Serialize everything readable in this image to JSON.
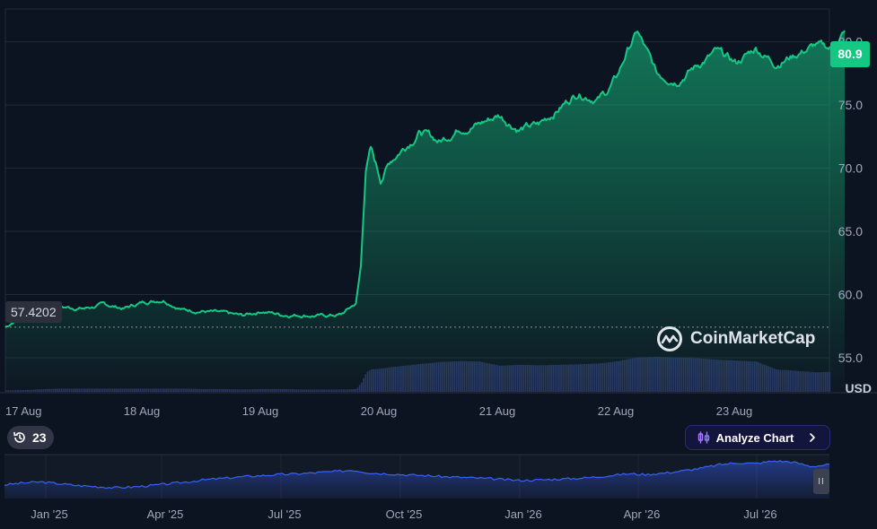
{
  "chart_data": {
    "type": "area",
    "y_axis": {
      "ticks": [
        "80.0",
        "75.0",
        "70.0",
        "65.0",
        "60.0",
        "55.0"
      ],
      "ylim": [
        52.3,
        82.6
      ],
      "unit": "USD",
      "side": "right"
    },
    "x_axis": {
      "ticks": [
        "17 Aug",
        "18 Aug",
        "19 Aug",
        "20 Aug",
        "21 Aug",
        "22 Aug",
        "23 Aug"
      ]
    },
    "current_value": "80.9",
    "start_value": "57.4202",
    "series": [
      {
        "x": [
          "17 Aug 00:00",
          "17 Aug 04:00",
          "17 Aug 08:00",
          "17 Aug 12:00",
          "17 Aug 16:00",
          "17 Aug 20:00",
          "18 Aug 00:00",
          "18 Aug 04:00",
          "18 Aug 08:00",
          "18 Aug 12:00",
          "18 Aug 16:00",
          "18 Aug 20:00",
          "19 Aug 00:00",
          "19 Aug 04:00",
          "19 Aug 08:00",
          "19 Aug 12:00",
          "19 Aug 16:00",
          "19 Aug 20:00",
          "19 Aug 23:00",
          "20 Aug 00:00",
          "20 Aug 01:00",
          "20 Aug 02:00",
          "20 Aug 04:00",
          "20 Aug 06:00",
          "20 Aug 08:00",
          "20 Aug 12:00",
          "20 Aug 16:00",
          "20 Aug 20:00",
          "21 Aug 00:00",
          "21 Aug 04:00",
          "21 Aug 08:00",
          "21 Aug 12:00",
          "21 Aug 16:00",
          "21 Aug 20:00",
          "22 Aug 00:00",
          "22 Aug 02:00",
          "22 Aug 04:00",
          "22 Aug 06:00",
          "22 Aug 08:00",
          "22 Aug 12:00",
          "22 Aug 16:00",
          "22 Aug 20:00",
          "23 Aug 00:00",
          "23 Aug 04:00",
          "23 Aug 08:00",
          "23 Aug 12:00",
          "23 Aug 16:00",
          "23 Aug 20:00",
          "24 Aug 00:00",
          "24 Aug 02:00"
        ],
        "y": [
          57.4,
          58.6,
          59.2,
          59.0,
          58.9,
          59.2,
          58.9,
          59.4,
          59.6,
          58.8,
          58.7,
          58.5,
          58.3,
          58.7,
          58.4,
          58.4,
          58.3,
          58.4,
          59.3,
          62.2,
          70.0,
          71.5,
          69.1,
          70.6,
          71.4,
          72.9,
          72.1,
          73.2,
          73.5,
          74.2,
          73.1,
          73.4,
          74.7,
          76.0,
          75.5,
          76.1,
          77.3,
          79.3,
          80.8,
          77.4,
          77.0,
          78.1,
          79.2,
          78.3,
          79.5,
          78.3,
          79.0,
          79.7,
          79.4,
          80.9
        ],
        "volume": [
          0.03,
          0.04,
          0.06,
          0.07,
          0.07,
          0.07,
          0.07,
          0.07,
          0.07,
          0.07,
          0.06,
          0.06,
          0.05,
          0.06,
          0.06,
          0.05,
          0.05,
          0.05,
          0.06,
          0.2,
          0.42,
          0.48,
          0.5,
          0.53,
          0.55,
          0.6,
          0.64,
          0.66,
          0.65,
          0.56,
          0.58,
          0.57,
          0.58,
          0.59,
          0.61,
          0.63,
          0.66,
          0.7,
          0.74,
          0.75,
          0.74,
          0.72,
          0.69,
          0.67,
          0.65,
          0.48,
          0.45,
          0.42,
          0.43,
          0.44
        ]
      }
    ],
    "navigator": {
      "ticks": [
        "Jan '25",
        "Apr '25",
        "Jul '25",
        "Oct '25",
        "Jan '26",
        "Apr '26",
        "Jul '26"
      ],
      "values": [
        0.3,
        0.35,
        0.38,
        0.33,
        0.28,
        0.25,
        0.22,
        0.24,
        0.28,
        0.33,
        0.38,
        0.44,
        0.48,
        0.52,
        0.55,
        0.58,
        0.6,
        0.63,
        0.66,
        0.7,
        0.62,
        0.6,
        0.57,
        0.55,
        0.52,
        0.5,
        0.48,
        0.45,
        0.42,
        0.43,
        0.45,
        0.47,
        0.5,
        0.55,
        0.6,
        0.58,
        0.62,
        0.68,
        0.75,
        0.85,
        0.9,
        0.88,
        0.95,
        0.92,
        0.8,
        0.85
      ],
      "line_color": "#3861fb"
    },
    "colors": {
      "line": "#16c784",
      "background": "#0d1421",
      "volume": "#2f3a6b",
      "grid": "#222a37"
    },
    "grid": true
  },
  "ui": {
    "history_count": "23",
    "history_icon": "history-clock-icon",
    "analyze_label": "Analyze Chart",
    "analyze_icon": "candlestick-icon",
    "chevron_icon": "chevron-right-icon",
    "watermark_text": "CoinMarketCap",
    "watermark_icon": "coinmarketcap-logo-icon",
    "pause_icon": "pause-icon",
    "pause_glyph": "II"
  }
}
